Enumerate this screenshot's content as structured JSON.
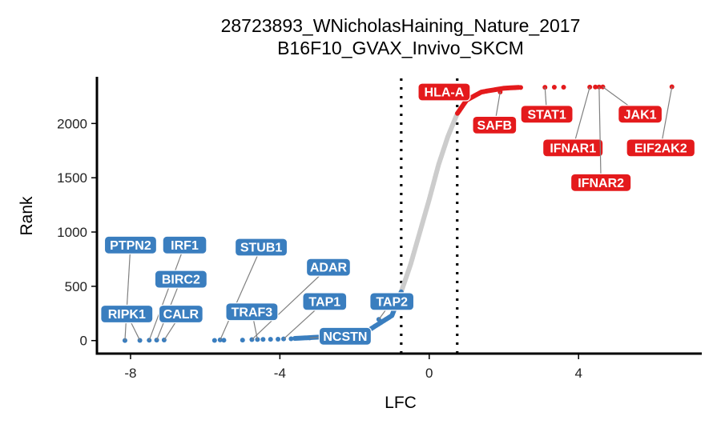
{
  "chart_data": {
    "type": "scatter",
    "title": "28723893_WNicholasHaining_Nature_2017",
    "subtitle": "B16F10_GVAX_Invivo_SKCM",
    "xlabel": "LFC",
    "ylabel": "Rank",
    "xlim": [
      -8.9,
      7.3
    ],
    "ylim": [
      -120,
      2430
    ],
    "xticks": [
      -8,
      -4,
      0,
      4
    ],
    "xtick_labels": [
      "-8",
      "-4",
      "0",
      "4"
    ],
    "yticks": [
      0,
      500,
      1000,
      1500,
      2000
    ],
    "ytick_labels": [
      "0",
      "500",
      "1000",
      "1500",
      "2000"
    ],
    "thresholds": [
      -0.75,
      0.75
    ],
    "grid": false,
    "legend": "none",
    "colors": {
      "negative": "#3a7ebf",
      "neutral": "#cccccc",
      "positive": "#e41a1c"
    },
    "n_genes": 2340,
    "labeled_genes": [
      {
        "gene": "PTPN2",
        "lfc": -8.15,
        "rank": 1,
        "group": "negative",
        "label_lfc": -8.0,
        "label_rank": 880
      },
      {
        "gene": "RIPK1",
        "lfc": -7.75,
        "rank": 2,
        "group": "negative",
        "label_lfc": -8.1,
        "label_rank": 245
      },
      {
        "gene": "IRF1",
        "lfc": -7.5,
        "rank": 3,
        "group": "negative",
        "label_lfc": -6.55,
        "label_rank": 880
      },
      {
        "gene": "BIRC2",
        "lfc": -7.3,
        "rank": 4,
        "group": "negative",
        "label_lfc": -6.65,
        "label_rank": 565
      },
      {
        "gene": "CALR",
        "lfc": -7.1,
        "rank": 5,
        "group": "negative",
        "label_lfc": -6.65,
        "label_rank": 245
      },
      {
        "gene": "STUB1",
        "lfc": -5.6,
        "rank": 6,
        "group": "negative",
        "label_lfc": -4.5,
        "label_rank": 860
      },
      {
        "gene": "ADAR",
        "lfc": -4.75,
        "rank": 9,
        "group": "negative",
        "label_lfc": -2.7,
        "label_rank": 675
      },
      {
        "gene": "TRAF3",
        "lfc": -4.6,
        "rank": 10,
        "group": "negative",
        "label_lfc": -4.75,
        "label_rank": 265
      },
      {
        "gene": "TAP1",
        "lfc": -3.9,
        "rank": 15,
        "group": "negative",
        "label_lfc": -2.8,
        "label_rank": 360
      },
      {
        "gene": "TAP2",
        "lfc": -1.35,
        "rank": 195,
        "group": "negative",
        "label_lfc": -1.0,
        "label_rank": 360
      },
      {
        "gene": "NCSTN",
        "lfc": -3.2,
        "rank": 25,
        "group": "negative",
        "label_lfc": -2.25,
        "label_rank": 40
      },
      {
        "gene": "HLA-A",
        "lfc": 1.0,
        "rank": 2240,
        "group": "positive",
        "label_lfc": 0.4,
        "label_rank": 2290
      },
      {
        "gene": "SAFB",
        "lfc": 1.9,
        "rank": 2290,
        "group": "positive",
        "label_lfc": 1.75,
        "label_rank": 1985
      },
      {
        "gene": "STAT1",
        "lfc": 3.1,
        "rank": 2333,
        "group": "positive",
        "label_lfc": 3.15,
        "label_rank": 2085
      },
      {
        "gene": "IFNAR1",
        "lfc": 4.3,
        "rank": 2335,
        "group": "positive",
        "label_lfc": 3.85,
        "label_rank": 1775
      },
      {
        "gene": "IFNAR2",
        "lfc": 4.55,
        "rank": 2336,
        "group": "positive",
        "label_lfc": 4.6,
        "label_rank": 1455
      },
      {
        "gene": "JAK1",
        "lfc": 4.65,
        "rank": 2337,
        "group": "positive",
        "label_lfc": 5.65,
        "label_rank": 2085
      },
      {
        "gene": "EIF2AK2",
        "lfc": 6.5,
        "rank": 2338,
        "group": "positive",
        "label_lfc": 6.2,
        "label_rank": 1775
      }
    ],
    "outlier_points": [
      {
        "lfc": -5.75,
        "rank": 2,
        "group": "negative"
      },
      {
        "lfc": -5.5,
        "rank": 3,
        "group": "negative"
      },
      {
        "lfc": -5.0,
        "rank": 4,
        "group": "negative"
      },
      {
        "lfc": -4.45,
        "rank": 11,
        "group": "negative"
      },
      {
        "lfc": -4.25,
        "rank": 12,
        "group": "negative"
      },
      {
        "lfc": -4.05,
        "rank": 13,
        "group": "negative"
      },
      {
        "lfc": -3.7,
        "rank": 16,
        "group": "negative"
      },
      {
        "lfc": 2.3,
        "rank": 2330,
        "group": "positive"
      },
      {
        "lfc": 2.45,
        "rank": 2331,
        "group": "positive"
      },
      {
        "lfc": 3.35,
        "rank": 2334,
        "group": "positive"
      },
      {
        "lfc": 3.6,
        "rank": 2334,
        "group": "positive"
      },
      {
        "lfc": 4.45,
        "rank": 2336,
        "group": "positive"
      }
    ],
    "curve_shape": [
      {
        "lfc": -3.6,
        "rank": 20
      },
      {
        "lfc": -2.5,
        "rank": 40
      },
      {
        "lfc": -1.6,
        "rank": 100
      },
      {
        "lfc": -1.0,
        "rank": 230
      },
      {
        "lfc": -0.75,
        "rank": 450
      },
      {
        "lfc": -0.5,
        "rank": 700
      },
      {
        "lfc": -0.25,
        "rank": 1000
      },
      {
        "lfc": 0.0,
        "rank": 1300
      },
      {
        "lfc": 0.25,
        "rank": 1620
      },
      {
        "lfc": 0.5,
        "rank": 1880
      },
      {
        "lfc": 0.75,
        "rank": 2090
      },
      {
        "lfc": 1.0,
        "rank": 2215
      },
      {
        "lfc": 1.4,
        "rank": 2290
      },
      {
        "lfc": 2.0,
        "rank": 2325
      },
      {
        "lfc": 2.4,
        "rank": 2333
      }
    ]
  }
}
